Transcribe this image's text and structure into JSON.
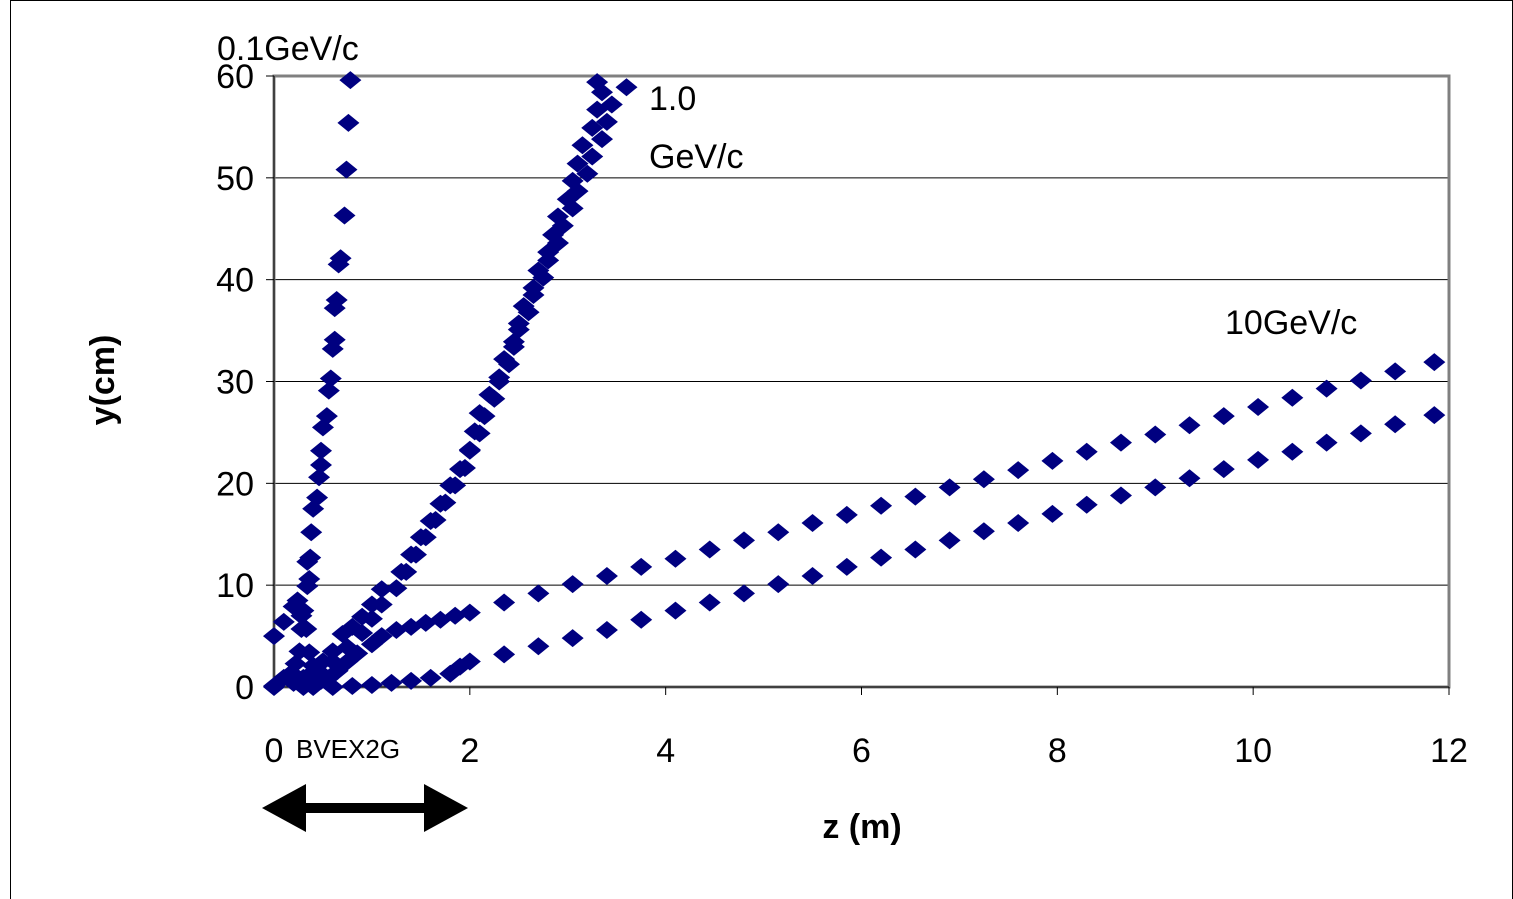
{
  "chart_data": {
    "type": "scatter",
    "title": "",
    "xlabel": "z (m)",
    "ylabel": "y(cm)",
    "xlim": [
      0,
      12
    ],
    "ylim": [
      0,
      60
    ],
    "x_ticks": [
      "0",
      "2",
      "4",
      "6",
      "8",
      "10",
      "12"
    ],
    "y_ticks": [
      "0",
      "10",
      "20",
      "30",
      "40",
      "50",
      "60"
    ],
    "grid": "horizontal",
    "marker": "diamond",
    "marker_color": "#000080",
    "annotations": {
      "p01": "0.1GeV/c",
      "p1_line1": "1.0",
      "p1_line2": "GeV/c",
      "p10": "10GeV/c",
      "magnet": "BVEX2G"
    },
    "series": [
      {
        "points": [
          [
            0.0,
            5.0
          ],
          [
            0.1,
            6.4
          ],
          [
            0.2,
            7.9
          ],
          [
            0.24,
            8.5
          ],
          [
            0.28,
            7.0
          ],
          [
            0.33,
            5.7
          ],
          [
            0.36,
            3.4
          ],
          [
            0.4,
            2.1
          ],
          [
            0.44,
            1.0
          ],
          [
            0.48,
            0.6
          ],
          [
            0.0,
            0.0
          ],
          [
            0.1,
            0.9
          ],
          [
            0.18,
            1.4
          ],
          [
            0.22,
            2.3
          ],
          [
            0.26,
            3.5
          ],
          [
            0.28,
            5.7
          ],
          [
            0.3,
            7.5
          ],
          [
            0.34,
            9.9
          ],
          [
            0.36,
            10.6
          ],
          [
            0.34,
            12.3
          ],
          [
            0.37,
            12.7
          ],
          [
            0.38,
            15.2
          ],
          [
            0.4,
            17.5
          ],
          [
            0.44,
            18.6
          ],
          [
            0.46,
            20.6
          ],
          [
            0.48,
            21.8
          ],
          [
            0.48,
            23.2
          ],
          [
            0.5,
            25.5
          ],
          [
            0.54,
            26.6
          ],
          [
            0.56,
            29.1
          ],
          [
            0.58,
            30.3
          ],
          [
            0.6,
            33.2
          ],
          [
            0.62,
            34.1
          ],
          [
            0.62,
            37.2
          ],
          [
            0.64,
            38.0
          ],
          [
            0.66,
            41.5
          ],
          [
            0.68,
            42.1
          ],
          [
            0.72,
            46.3
          ],
          [
            0.74,
            50.8
          ],
          [
            0.76,
            55.4
          ],
          [
            0.78,
            59.6
          ]
        ]
      },
      {
        "points": [
          [
            0.0,
            0.1
          ],
          [
            0.2,
            0.4
          ],
          [
            0.3,
            0.9
          ],
          [
            0.4,
            1.5
          ],
          [
            0.5,
            2.5
          ],
          [
            0.6,
            3.5
          ],
          [
            0.7,
            5.2
          ],
          [
            0.8,
            5.9
          ],
          [
            0.9,
            6.9
          ],
          [
            1.0,
            8.1
          ],
          [
            1.1,
            9.6
          ],
          [
            1.3,
            11.3
          ],
          [
            1.4,
            13.0
          ],
          [
            1.5,
            14.7
          ],
          [
            1.6,
            16.3
          ],
          [
            1.7,
            18.0
          ],
          [
            1.8,
            19.8
          ],
          [
            1.9,
            21.4
          ],
          [
            2.0,
            23.3
          ],
          [
            2.05,
            25.1
          ],
          [
            2.1,
            26.9
          ],
          [
            2.2,
            28.7
          ],
          [
            2.3,
            30.4
          ],
          [
            2.35,
            32.2
          ],
          [
            2.45,
            33.9
          ],
          [
            2.5,
            35.7
          ],
          [
            2.55,
            37.4
          ],
          [
            2.65,
            39.2
          ],
          [
            2.7,
            40.9
          ],
          [
            2.8,
            42.7
          ],
          [
            2.85,
            44.4
          ],
          [
            2.9,
            46.2
          ],
          [
            3.0,
            47.9
          ],
          [
            3.05,
            49.7
          ],
          [
            3.1,
            51.4
          ],
          [
            3.15,
            53.2
          ],
          [
            3.25,
            54.9
          ],
          [
            3.3,
            56.7
          ],
          [
            3.35,
            58.4
          ],
          [
            3.3,
            59.4
          ],
          [
            0.3,
            0.0
          ],
          [
            0.5,
            1.2
          ],
          [
            0.6,
            2.5
          ],
          [
            0.75,
            3.9
          ],
          [
            0.9,
            5.3
          ],
          [
            1.0,
            6.7
          ],
          [
            1.1,
            8.1
          ],
          [
            1.25,
            9.7
          ],
          [
            1.35,
            11.3
          ],
          [
            1.45,
            13.0
          ],
          [
            1.55,
            14.7
          ],
          [
            1.65,
            16.4
          ],
          [
            1.75,
            18.1
          ],
          [
            1.85,
            19.8
          ],
          [
            1.95,
            21.5
          ],
          [
            2.0,
            23.2
          ],
          [
            2.1,
            24.9
          ],
          [
            2.15,
            26.6
          ],
          [
            2.25,
            28.3
          ],
          [
            2.3,
            30.0
          ],
          [
            2.4,
            31.7
          ],
          [
            2.45,
            33.4
          ],
          [
            2.5,
            35.1
          ],
          [
            2.6,
            36.8
          ],
          [
            2.65,
            38.5
          ],
          [
            2.75,
            40.2
          ],
          [
            2.8,
            41.9
          ],
          [
            2.9,
            43.6
          ],
          [
            2.95,
            45.3
          ],
          [
            3.05,
            47.0
          ],
          [
            3.1,
            48.7
          ],
          [
            3.2,
            50.4
          ],
          [
            3.25,
            52.1
          ],
          [
            3.35,
            53.8
          ],
          [
            3.4,
            55.5
          ],
          [
            3.45,
            57.2
          ],
          [
            3.6,
            58.9
          ]
        ]
      },
      {
        "points": [
          [
            0.4,
            0.0
          ],
          [
            0.55,
            0.8
          ],
          [
            0.65,
            1.6
          ],
          [
            0.75,
            2.5
          ],
          [
            0.85,
            3.3
          ],
          [
            1.0,
            4.2
          ],
          [
            1.1,
            5.0
          ],
          [
            1.25,
            5.6
          ],
          [
            1.4,
            5.9
          ],
          [
            1.55,
            6.3
          ],
          [
            1.7,
            6.6
          ],
          [
            1.85,
            7.0
          ],
          [
            2.0,
            7.3
          ],
          [
            2.35,
            8.3
          ],
          [
            2.7,
            9.2
          ],
          [
            3.05,
            10.1
          ],
          [
            3.4,
            10.9
          ],
          [
            3.75,
            11.8
          ],
          [
            4.1,
            12.6
          ],
          [
            4.45,
            13.5
          ],
          [
            4.8,
            14.4
          ],
          [
            5.15,
            15.2
          ],
          [
            5.5,
            16.1
          ],
          [
            5.85,
            16.9
          ],
          [
            6.2,
            17.8
          ],
          [
            6.55,
            18.7
          ],
          [
            6.9,
            19.6
          ],
          [
            7.25,
            20.4
          ],
          [
            7.6,
            21.3
          ],
          [
            7.95,
            22.2
          ],
          [
            8.3,
            23.1
          ],
          [
            8.65,
            24.0
          ],
          [
            9.0,
            24.8
          ],
          [
            9.35,
            25.7
          ],
          [
            9.7,
            26.6
          ],
          [
            10.05,
            27.5
          ],
          [
            10.4,
            28.4
          ],
          [
            10.75,
            29.3
          ],
          [
            11.1,
            30.1
          ],
          [
            11.45,
            31.0
          ],
          [
            11.85,
            31.9
          ],
          [
            0.6,
            0.0
          ],
          [
            0.8,
            0.1
          ],
          [
            1.0,
            0.2
          ],
          [
            1.2,
            0.4
          ],
          [
            1.4,
            0.6
          ],
          [
            1.6,
            0.9
          ],
          [
            1.8,
            1.3
          ],
          [
            1.9,
            2.0
          ],
          [
            2.0,
            2.5
          ],
          [
            2.35,
            3.2
          ],
          [
            2.7,
            4.0
          ],
          [
            3.05,
            4.8
          ],
          [
            3.4,
            5.6
          ],
          [
            3.75,
            6.6
          ],
          [
            4.1,
            7.5
          ],
          [
            4.45,
            8.3
          ],
          [
            4.8,
            9.2
          ],
          [
            5.15,
            10.1
          ],
          [
            5.5,
            10.9
          ],
          [
            5.85,
            11.8
          ],
          [
            6.2,
            12.7
          ],
          [
            6.55,
            13.5
          ],
          [
            6.9,
            14.4
          ],
          [
            7.25,
            15.3
          ],
          [
            7.6,
            16.1
          ],
          [
            7.95,
            17.0
          ],
          [
            8.3,
            17.9
          ],
          [
            8.65,
            18.8
          ],
          [
            9.0,
            19.6
          ],
          [
            9.35,
            20.5
          ],
          [
            9.7,
            21.4
          ],
          [
            10.05,
            22.3
          ],
          [
            10.4,
            23.1
          ],
          [
            10.75,
            24.0
          ],
          [
            11.1,
            24.9
          ],
          [
            11.45,
            25.8
          ],
          [
            11.85,
            26.7
          ]
        ]
      }
    ]
  }
}
